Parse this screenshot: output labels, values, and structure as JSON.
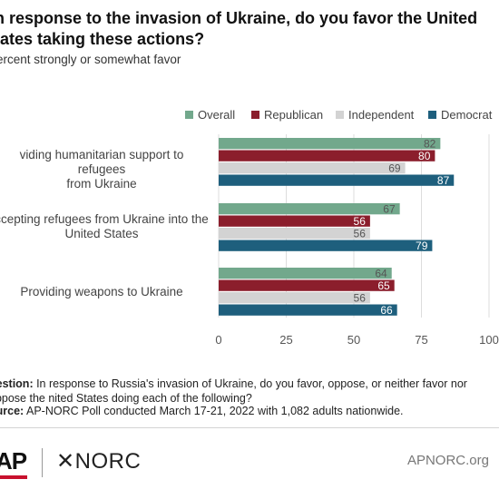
{
  "header": {
    "title": "n response to the invasion of Ukraine, do you favor the United\ntates taking these actions?",
    "subtitle": "ercent strongly or somewhat favor"
  },
  "chart_data": {
    "type": "bar",
    "orientation": "horizontal",
    "categories": [
      "viding humanitarian support to refugees\nfrom Ukraine",
      "ccepting refugees from Ukraine into the\nUnited States",
      "Providing weapons to Ukraine"
    ],
    "series": [
      {
        "name": "Overall",
        "color": "#72a88c",
        "values": [
          82,
          67,
          64
        ]
      },
      {
        "name": "Republican",
        "color": "#8b1e2c",
        "values": [
          80,
          56,
          65
        ]
      },
      {
        "name": "Independent",
        "color": "#d3d3d3",
        "values": [
          69,
          56,
          56
        ]
      },
      {
        "name": "Democrat",
        "color": "#1e5f7d",
        "values": [
          87,
          79,
          66
        ]
      }
    ],
    "xlim": [
      0,
      100
    ],
    "xticks": [
      "0",
      "25",
      "50",
      "75",
      "100"
    ],
    "grid": true,
    "legend_position": "top-right",
    "data_labels": true
  },
  "notes": {
    "question_label": "uestion:",
    "question_text": " In response to Russia's invasion of Ukraine, do you favor, oppose, or neither favor nor oppose the nited States doing each of the following?",
    "source_label": "ource:",
    "source_text": " AP-NORC Poll conducted March 17-21, 2022 with 1,082 adults nationwide."
  },
  "footer": {
    "ap_logo": "AP",
    "norc_logo": "✕NORC",
    "site": "APNORC.org"
  }
}
